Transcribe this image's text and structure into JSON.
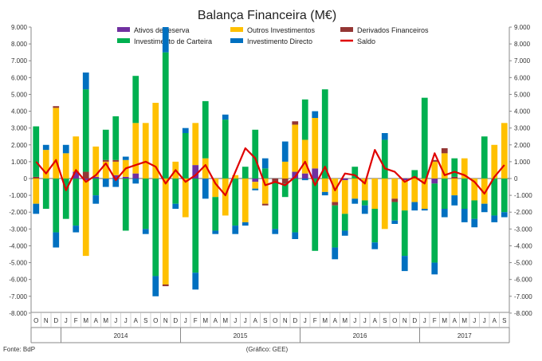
{
  "chart_data": {
    "type": "bar",
    "title": "Balança Financeira (M€)",
    "source": "Fonte: BdP",
    "credit": "(Gráfico: GEE)",
    "ylim": [
      -8000,
      9000
    ],
    "yticks": [
      9000,
      8000,
      7000,
      6000,
      5000,
      4000,
      3000,
      2000,
      1000,
      0,
      -1000,
      -2000,
      -3000,
      -4000,
      -5000,
      -6000,
      -7000,
      -8000
    ],
    "ytick_labels_left": [
      "9.000",
      "8.000",
      "7.000",
      "6.000",
      "5.000",
      "4.000",
      "3.000",
      "2.000",
      "1.000",
      "0",
      "-1.000",
      "-2.000",
      "-3.000",
      "-4.000",
      "-5.000",
      "-6.000",
      "-7.000",
      "-8.000"
    ],
    "ytick_labels_right": [
      "9.000",
      "8.000",
      "7.000",
      "6.000",
      "5.000",
      "4.000",
      "3.000",
      "2.000",
      "1.000",
      "0",
      "-1.000",
      "-2.000",
      "-3.000",
      "-4.000",
      "-5.000",
      "-6.000",
      "-7.000",
      "-8.000"
    ],
    "categories": [
      "O",
      "N",
      "D",
      "J",
      "F",
      "M",
      "A",
      "M",
      "J",
      "J",
      "A",
      "S",
      "O",
      "N",
      "D",
      "J",
      "F",
      "M",
      "A",
      "M",
      "J",
      "J",
      "A",
      "S",
      "O",
      "N",
      "D",
      "J",
      "F",
      "M",
      "A",
      "M",
      "J",
      "J",
      "A",
      "S",
      "O",
      "N",
      "D",
      "J",
      "F",
      "M",
      "A",
      "M",
      "J",
      "J",
      "A",
      "S"
    ],
    "year_labels": [
      {
        "label": "2014",
        "start": 3,
        "end": 14
      },
      {
        "label": "2015",
        "start": 15,
        "end": 26
      },
      {
        "label": "2016",
        "start": 27,
        "end": 38
      },
      {
        "label": "2017",
        "start": 39,
        "end": 47
      }
    ],
    "grid": false,
    "legend_position": "top",
    "series": [
      {
        "name": "Ativos de reserva",
        "color": "#7030a0",
        "values": [
          0,
          0,
          0,
          0,
          400,
          -100,
          100,
          0,
          200,
          100,
          300,
          0,
          0,
          0,
          0,
          0,
          800,
          0,
          0,
          0,
          0,
          0,
          -200,
          0,
          0,
          0,
          400,
          300,
          600,
          0,
          0,
          -100,
          0,
          0,
          0,
          0,
          0,
          -100,
          0,
          0,
          -300,
          0,
          0,
          0,
          0,
          0,
          0,
          0
        ]
      },
      {
        "name": "Outros Investimentos",
        "color": "#ffc000",
        "values": [
          -1500,
          1700,
          4200,
          1500,
          2100,
          -4500,
          1800,
          1000,
          800,
          1000,
          3000,
          3300,
          4500,
          -6300,
          1000,
          -2300,
          2500,
          1200,
          -1100,
          -2200,
          200,
          -2600,
          -400,
          -1500,
          0,
          1000,
          2800,
          2000,
          3000,
          -800,
          -1400,
          -2000,
          -1200,
          -1300,
          -1800,
          -3000,
          -1200,
          -1800,
          -1400,
          -1800,
          1000,
          1500,
          -1000,
          1200,
          -1300,
          -1500,
          2000,
          3300
        ]
      },
      {
        "name": "Derivados Financeiros",
        "color": "#943634",
        "values": [
          100,
          0,
          100,
          0,
          0,
          400,
          0,
          100,
          100,
          0,
          0,
          0,
          0,
          -100,
          0,
          0,
          0,
          0,
          0,
          0,
          0,
          0,
          0,
          -100,
          -200,
          -300,
          200,
          0,
          0,
          0,
          -200,
          0,
          0,
          0,
          0,
          0,
          -200,
          0,
          0,
          0,
          100,
          300,
          100,
          0,
          0,
          0,
          0,
          0
        ]
      },
      {
        "name": "Investimento de Carteira",
        "color": "#00b050",
        "values": [
          3000,
          -1800,
          -3200,
          -2400,
          -2800,
          4900,
          -1000,
          1800,
          2600,
          -3100,
          2800,
          -3000,
          -5800,
          7500,
          -1500,
          2700,
          -5600,
          3400,
          -2000,
          3500,
          -2800,
          700,
          2900,
          600,
          -2800,
          -800,
          -3200,
          2400,
          -4300,
          5300,
          -2500,
          -1000,
          700,
          -300,
          -2000,
          2300,
          -1100,
          -2700,
          500,
          4800,
          -4700,
          -1800,
          1100,
          -1800,
          -1100,
          2500,
          -2200,
          -2000
        ]
      },
      {
        "name": "Investimento Directo",
        "color": "#0070c0",
        "values": [
          -600,
          300,
          -900,
          500,
          -400,
          1000,
          -500,
          -500,
          -500,
          200,
          -300,
          -300,
          -1200,
          1500,
          -300,
          300,
          -1000,
          -1200,
          -200,
          300,
          -500,
          -200,
          -100,
          600,
          -300,
          1200,
          -400,
          -100,
          400,
          -200,
          -700,
          -300,
          -300,
          -500,
          -400,
          400,
          -200,
          -900,
          -500,
          -100,
          -700,
          -500,
          -600,
          -800,
          -500,
          -500,
          -400,
          -300
        ]
      }
    ],
    "saldo": {
      "name": "Saldo",
      "color": "#e00000",
      "values": [
        1000,
        300,
        1100,
        -700,
        500,
        -200,
        200,
        900,
        -100,
        600,
        800,
        1000,
        700,
        -300,
        500,
        -200,
        200,
        800,
        -300,
        -1000,
        400,
        1800,
        1200,
        -400,
        -200,
        -400,
        100,
        1000,
        -400,
        700,
        -700,
        300,
        200,
        -300,
        1700,
        600,
        400,
        -200,
        100,
        -300,
        1500,
        200,
        400,
        200,
        -200,
        -900,
        100,
        800
      ]
    }
  }
}
